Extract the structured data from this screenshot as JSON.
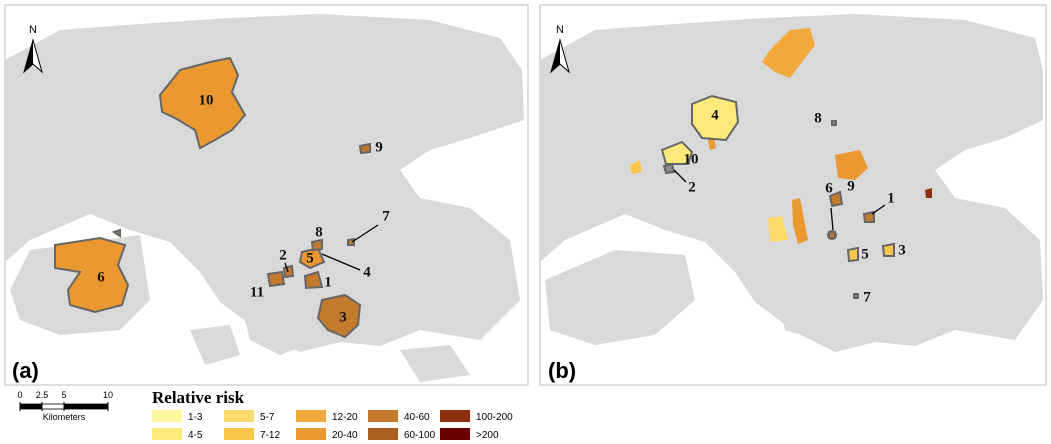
{
  "panels": [
    {
      "label": "(a)",
      "north": "N",
      "clusters": [
        {
          "label": "1",
          "color": "#c47a2c"
        },
        {
          "label": "2",
          "color": "#c47a2c"
        },
        {
          "label": "3",
          "color": "#c47a2c"
        },
        {
          "label": "4",
          "color": "#c47a2c"
        },
        {
          "label": "5",
          "color": "#e9992f"
        },
        {
          "label": "6",
          "color": "#e9992f"
        },
        {
          "label": "7",
          "color": "#c47a2c"
        },
        {
          "label": "8",
          "color": "#c47a2c"
        },
        {
          "label": "9",
          "color": "#c47a2c"
        },
        {
          "label": "10",
          "color": "#e9992f"
        },
        {
          "label": "11",
          "color": "#c47a2c"
        }
      ]
    },
    {
      "label": "(b)",
      "north": "N",
      "clusters": [
        {
          "label": "1",
          "color": "#c47a2c"
        },
        {
          "label": "2",
          "color": "#8a8a8a"
        },
        {
          "label": "3",
          "color": "#f9c54b"
        },
        {
          "label": "4",
          "color": "#fde87a"
        },
        {
          "label": "5",
          "color": "#f9c54b"
        },
        {
          "label": "6",
          "color": "#c47a2c"
        },
        {
          "label": "7",
          "color": "#8a8a8a"
        },
        {
          "label": "8",
          "color": "#8a8a8a"
        },
        {
          "label": "9",
          "color": "#c47a2c"
        },
        {
          "label": "10",
          "color": "#fde87a"
        }
      ]
    }
  ],
  "scale_bar": {
    "ticks": [
      0,
      2.5,
      5,
      10
    ],
    "unit": "Kilometers"
  },
  "legend": {
    "title": "Relative risk",
    "classes": [
      {
        "label": "1-3",
        "color": "#fff6a0"
      },
      {
        "label": "4-5",
        "color": "#fde87a"
      },
      {
        "label": "5-7",
        "color": "#fcd96b"
      },
      {
        "label": "7-12",
        "color": "#f9c54b"
      },
      {
        "label": "12-20",
        "color": "#f2a93b"
      },
      {
        "label": "20-40",
        "color": "#e9992f"
      },
      {
        "label": "40-60",
        "color": "#c47a2c"
      },
      {
        "label": "60-100",
        "color": "#a95e1e"
      },
      {
        "label": "100-200",
        "color": "#8b2f0c"
      },
      {
        "label": ">200",
        "color": "#6b0000"
      }
    ]
  }
}
